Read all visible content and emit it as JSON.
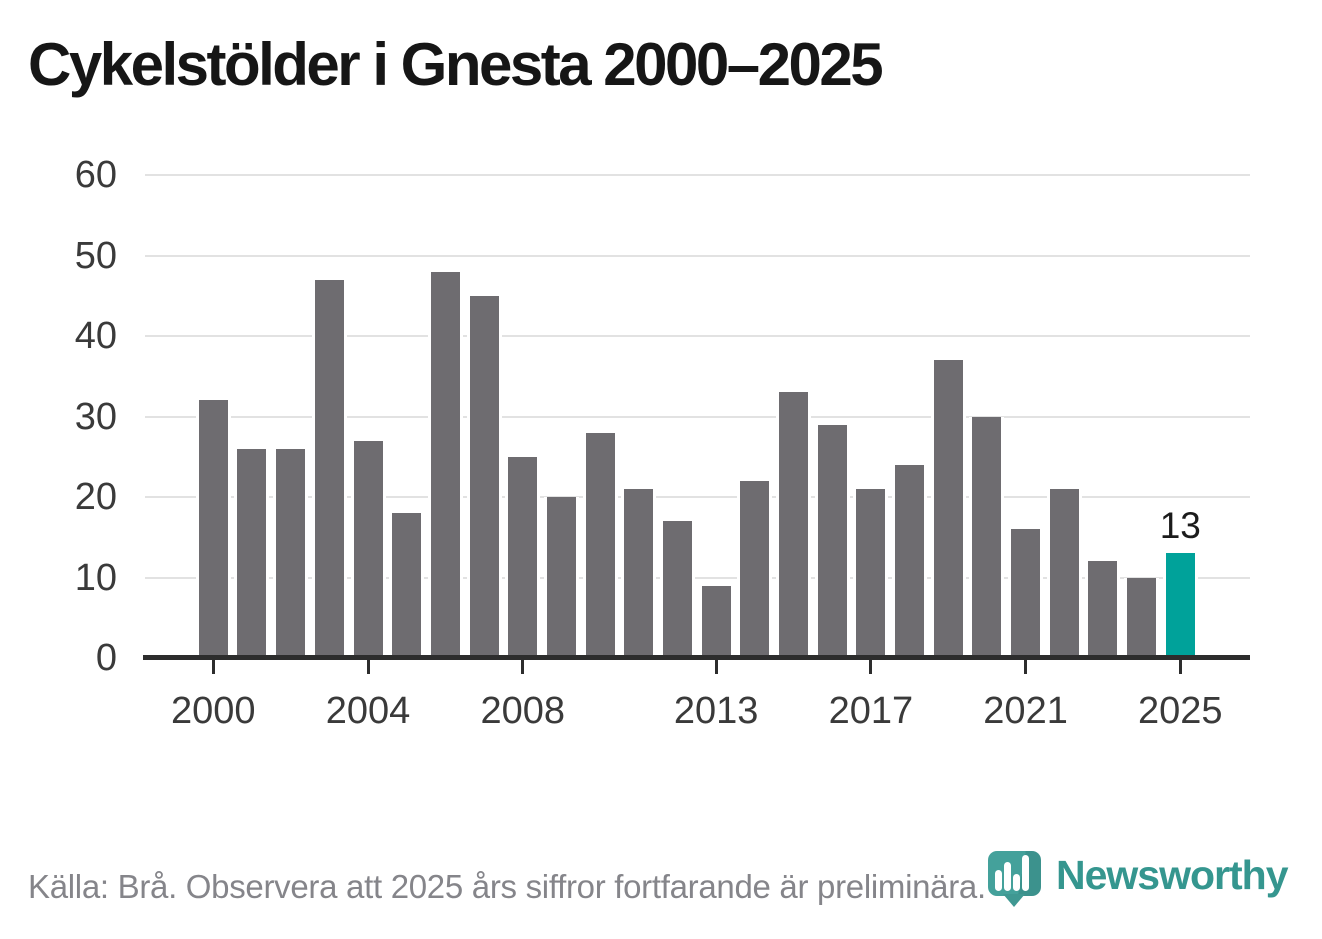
{
  "title": "Cykelstölder i Gnesta 2000–2025",
  "footer": {
    "source_note": "Källa: Brå. Observera att 2025 års siffror fortfarande är preliminära."
  },
  "branding": {
    "logo_text": "Newsworthy",
    "logo_icon": "newsworthy-pin-bar-chart-icon",
    "logo_text_color": "#35968f",
    "logo_icon_color": "#44a19b"
  },
  "chart_data": {
    "type": "bar",
    "title": "Cykelstölder i Gnesta 2000–2025",
    "categories": [
      2000,
      2001,
      2002,
      2003,
      2004,
      2005,
      2006,
      2007,
      2008,
      2009,
      2010,
      2011,
      2012,
      2013,
      2014,
      2015,
      2016,
      2017,
      2018,
      2019,
      2020,
      2021,
      2022,
      2023,
      2024,
      2025
    ],
    "values": [
      32,
      26,
      26,
      47,
      27,
      18,
      48,
      45,
      25,
      20,
      28,
      21,
      17,
      9,
      22,
      33,
      29,
      21,
      24,
      37,
      30,
      16,
      21,
      12,
      10,
      13
    ],
    "highlight_index": 25,
    "highlight_value_label": "13",
    "bar_color": "#6e6c70",
    "highlight_color": "#00a29a",
    "xtick_labels": [
      "2000",
      "2004",
      "2008",
      "2013",
      "2017",
      "2021",
      "2025"
    ],
    "xtick_years": [
      2000,
      2004,
      2008,
      2013,
      2017,
      2021,
      2025
    ],
    "yticks": [
      0,
      10,
      20,
      30,
      40,
      50,
      60
    ],
    "ylim": [
      0,
      60
    ],
    "grid": "horizontal",
    "legend": "none",
    "xlabel": "",
    "ylabel": ""
  }
}
